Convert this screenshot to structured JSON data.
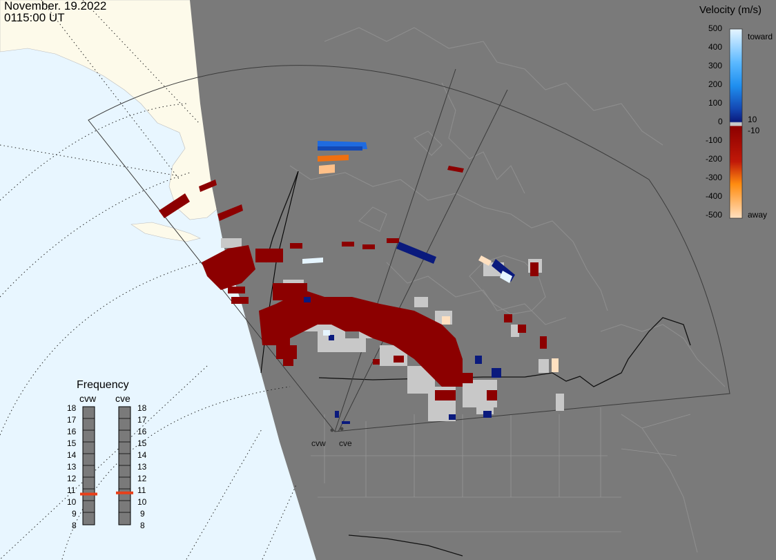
{
  "header": {
    "date": "November. 19.2022",
    "time": "0115:00 UT"
  },
  "colorbar": {
    "title": "Velocity (m/s)",
    "ticks": [
      "500",
      "400",
      "300",
      "200",
      "100",
      "0",
      "-100",
      "-200",
      "-300",
      "-400",
      "-500"
    ],
    "side_labels": [
      "toward",
      "10",
      "-10",
      "away"
    ],
    "colors": {
      "toward_max": "#e6f5ff",
      "toward_mid": "#1f8fef",
      "toward_low": "#1449b4",
      "toward_min": "#0a1a7d",
      "zero": "#c8c8c8",
      "away_min": "#8c0000",
      "away_mid": "#d84310",
      "away_high": "#ff8c10",
      "away_max": "#ffe0c0"
    }
  },
  "frequency_panel": {
    "title": "Frequency",
    "sites": [
      {
        "name": "cvw",
        "current_mhz": 10.6
      },
      {
        "name": "cve",
        "current_mhz": 10.7
      }
    ],
    "scale": [
      "18",
      "17",
      "16",
      "15",
      "14",
      "13",
      "12",
      "11",
      "10",
      "9",
      "8"
    ],
    "marker_color": "#e8401a"
  },
  "radar_sites": [
    "cvw",
    "cve"
  ],
  "map_colors": {
    "night_side": "#7a7a7a",
    "day_ocean": "#e8f6ff",
    "day_land": "#fdfaea",
    "ground_scatter": "#c8c8c8"
  }
}
